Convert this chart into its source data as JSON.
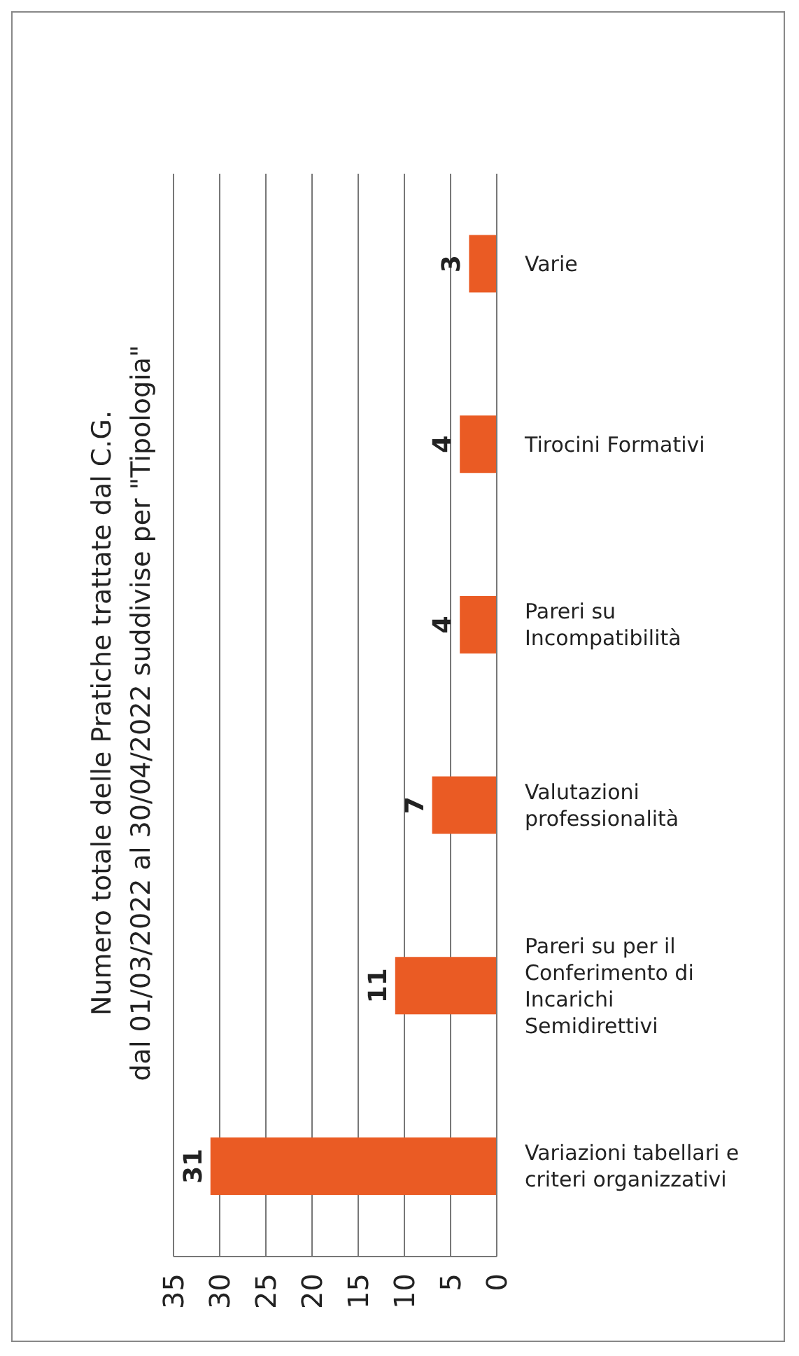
{
  "chart_data": {
    "type": "bar",
    "orientation": "horizontal",
    "title": "Numero totale delle Pratiche trattate dal C.G.",
    "subtitle": "dal 01/03/2022 al 30/04/2022 suddivise per \"Tipologia\"",
    "categories": [
      "Varie",
      "Tirocini Formativi",
      "Pareri su Incompatibilità",
      "Valutazioni professionalità",
      "Pareri su per il Conferimento di Incarichi Semidirettivi",
      "Variazioni tabellari e criteri organizzativi"
    ],
    "values": [
      3,
      4,
      4,
      7,
      11,
      31
    ],
    "color": "#ea5b24",
    "xlim": [
      35,
      0
    ],
    "xticks": [
      0,
      5,
      10,
      15,
      20,
      25,
      30,
      35
    ],
    "grid": "x",
    "data_labels": true
  }
}
